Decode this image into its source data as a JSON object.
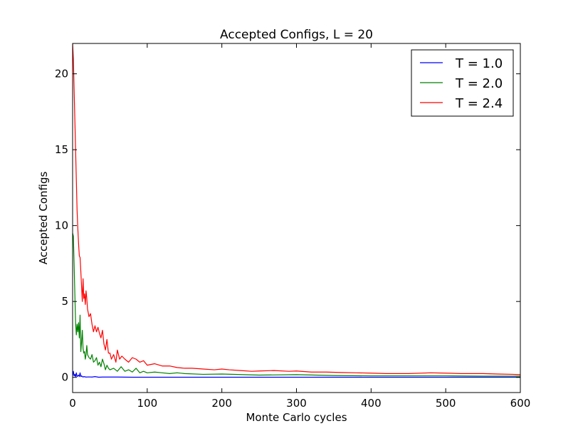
{
  "chart_data": {
    "type": "line",
    "title": "Accepted Configs, L = 20",
    "xlabel": "Monte Carlo cycles",
    "ylabel": "Accepted Configs",
    "xlim": [
      0,
      600
    ],
    "ylim": [
      -1,
      22
    ],
    "xticks": [
      0,
      100,
      200,
      300,
      400,
      500,
      600
    ],
    "yticks": [
      0,
      5,
      10,
      15,
      20
    ],
    "grid": false,
    "legend_position": "top-right",
    "series": [
      {
        "name": "T = 1.0",
        "color": "#0000ff",
        "x": [
          0,
          1,
          2,
          3,
          4,
          5,
          6,
          7,
          8,
          9,
          10,
          11,
          12,
          13,
          14,
          15,
          18,
          22,
          26,
          30,
          35,
          40,
          60,
          80,
          100,
          150,
          200,
          300,
          400,
          500,
          600
        ],
        "y": [
          0.1,
          0.4,
          0.1,
          0.2,
          0.05,
          0.3,
          0.05,
          0.1,
          0.15,
          0.05,
          0.3,
          0.05,
          0.1,
          0.05,
          0.02,
          0.05,
          0.02,
          0.03,
          0.02,
          0.05,
          0.01,
          0.02,
          0.02,
          0.01,
          0.01,
          0.01,
          0.01,
          0.01,
          0.01,
          0.01,
          0.01
        ]
      },
      {
        "name": "T = 2.0",
        "color": "#008000",
        "x": [
          0,
          1,
          2,
          3,
          4,
          5,
          6,
          7,
          8,
          9,
          10,
          11,
          12,
          13,
          14,
          15,
          16,
          17,
          18,
          19,
          20,
          22,
          24,
          26,
          28,
          30,
          32,
          34,
          36,
          38,
          40,
          42,
          44,
          46,
          48,
          50,
          55,
          60,
          65,
          70,
          75,
          80,
          85,
          90,
          95,
          100,
          110,
          120,
          130,
          140,
          150,
          175,
          200,
          250,
          300,
          350,
          400,
          450,
          500,
          550,
          600
        ],
        "y": [
          9.5,
          9.3,
          7.5,
          5.5,
          3.6,
          2.8,
          3.5,
          3.0,
          3.6,
          2.6,
          4.1,
          1.7,
          2.3,
          3.1,
          1.9,
          1.6,
          1.7,
          1.2,
          1.5,
          2.1,
          1.5,
          1.3,
          1.2,
          1.5,
          1.0,
          1.1,
          1.3,
          0.8,
          1.0,
          0.7,
          1.2,
          0.9,
          0.5,
          0.8,
          0.6,
          0.5,
          0.6,
          0.4,
          0.7,
          0.4,
          0.5,
          0.35,
          0.6,
          0.3,
          0.4,
          0.3,
          0.35,
          0.3,
          0.25,
          0.3,
          0.25,
          0.2,
          0.22,
          0.15,
          0.18,
          0.12,
          0.1,
          0.1,
          0.1,
          0.08,
          0.08
        ]
      },
      {
        "name": "T = 2.4",
        "color": "#ff0000",
        "x": [
          0,
          1,
          2,
          3,
          4,
          5,
          6,
          7,
          8,
          9,
          10,
          11,
          12,
          13,
          14,
          15,
          16,
          17,
          18,
          19,
          20,
          22,
          24,
          26,
          28,
          30,
          32,
          34,
          36,
          38,
          40,
          42,
          44,
          46,
          48,
          50,
          52,
          55,
          58,
          60,
          63,
          66,
          70,
          75,
          80,
          85,
          90,
          95,
          100,
          110,
          120,
          130,
          140,
          150,
          160,
          175,
          190,
          200,
          210,
          225,
          240,
          250,
          270,
          290,
          300,
          320,
          340,
          360,
          380,
          400,
          420,
          450,
          480,
          500,
          520,
          550,
          570,
          590,
          600
        ],
        "y": [
          22,
          21,
          19,
          17,
          15,
          13,
          11,
          9.8,
          8.8,
          8.0,
          7.9,
          7.0,
          6.0,
          5.0,
          6.5,
          5.2,
          5.5,
          4.8,
          5.7,
          5.2,
          4.5,
          4.0,
          4.2,
          3.5,
          3.0,
          3.4,
          3.0,
          3.3,
          2.9,
          2.6,
          3.1,
          2.2,
          1.8,
          2.5,
          1.6,
          1.6,
          1.2,
          1.5,
          1.0,
          1.8,
          1.2,
          1.4,
          1.2,
          1.0,
          1.3,
          1.2,
          1.0,
          1.1,
          0.8,
          0.9,
          0.75,
          0.75,
          0.65,
          0.6,
          0.6,
          0.55,
          0.5,
          0.55,
          0.5,
          0.45,
          0.4,
          0.42,
          0.45,
          0.4,
          0.42,
          0.35,
          0.35,
          0.32,
          0.3,
          0.28,
          0.25,
          0.25,
          0.3,
          0.28,
          0.25,
          0.25,
          0.22,
          0.2,
          0.18
        ]
      }
    ]
  }
}
